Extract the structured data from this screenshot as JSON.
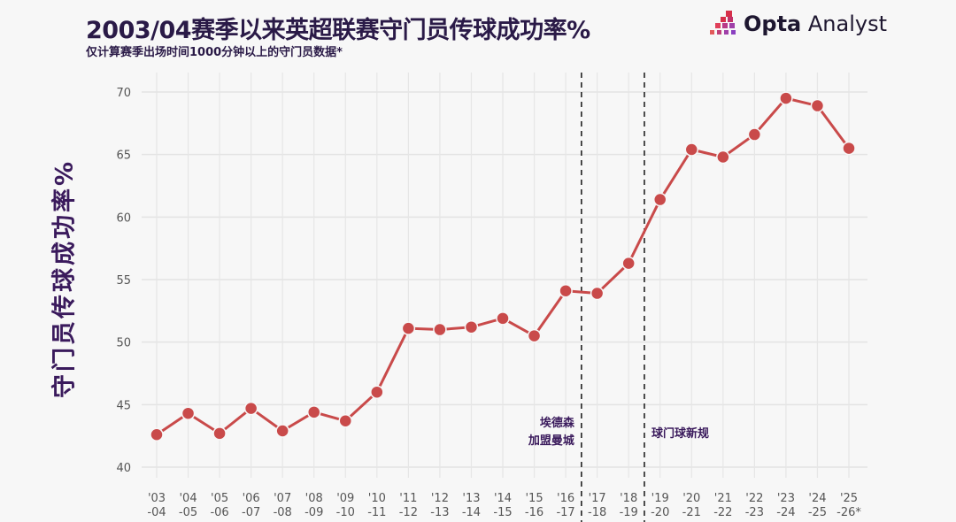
{
  "header": {
    "title": "2003/04赛季以来英超联赛守门员传球成功率%",
    "subtitle": "仅计算赛季出场时间1000分钟以上的守门员数据*",
    "logo_text_bold": "Opta",
    "logo_text": "Analyst"
  },
  "chart_data": {
    "type": "line",
    "title": "2003/04赛季以来英超联赛守门员传球成功率%",
    "subtitle": "仅计算赛季出场时间1000分钟以上的守门员数据*",
    "xlabel": "",
    "ylabel": "守门员传球成功率%",
    "ylim": [
      39,
      71
    ],
    "yticks": [
      40,
      45,
      50,
      55,
      60,
      65,
      70
    ],
    "grid": true,
    "categories": [
      [
        "'03",
        "-04"
      ],
      [
        "'04",
        "-05"
      ],
      [
        "'05",
        "-06"
      ],
      [
        "'06",
        "-07"
      ],
      [
        "'07",
        "-08"
      ],
      [
        "'08",
        "-09"
      ],
      [
        "'09",
        "-10"
      ],
      [
        "'10",
        "-11"
      ],
      [
        "'11",
        "-12"
      ],
      [
        "'12",
        "-13"
      ],
      [
        "'13",
        "-14"
      ],
      [
        "'14",
        "-15"
      ],
      [
        "'15",
        "-16"
      ],
      [
        "'16",
        "-17"
      ],
      [
        "'17",
        "-18"
      ],
      [
        "'18",
        "-19"
      ],
      [
        "'19",
        "-20"
      ],
      [
        "'20",
        "-21"
      ],
      [
        "'21",
        "-22"
      ],
      [
        "'22",
        "-23"
      ],
      [
        "'23",
        "-24"
      ],
      [
        "'24",
        "-25"
      ],
      [
        "'25",
        "-26*"
      ]
    ],
    "values": [
      42.6,
      44.3,
      42.7,
      44.7,
      42.9,
      44.4,
      43.7,
      46.0,
      51.1,
      51.0,
      51.2,
      51.9,
      50.5,
      54.1,
      53.9,
      56.3,
      61.4,
      65.4,
      64.8,
      66.6,
      69.5,
      68.9,
      65.5
    ],
    "line_color": "#c94a4a",
    "annotations": [
      {
        "after_index": 13,
        "lines": [
          "埃德森",
          "加盟曼城"
        ],
        "side": "left"
      },
      {
        "after_index": 15,
        "lines": [
          "球门球新规"
        ],
        "side": "right"
      }
    ]
  }
}
